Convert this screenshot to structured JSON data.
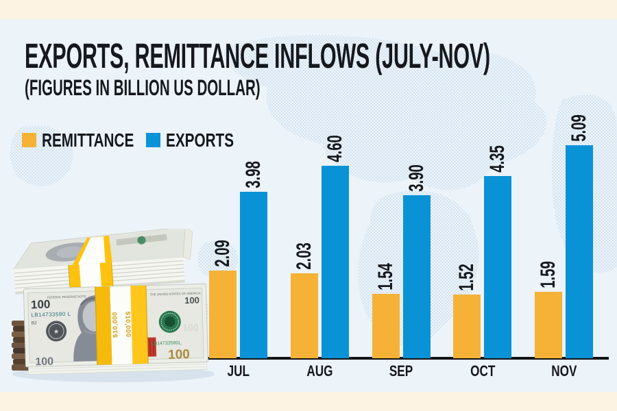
{
  "page": {
    "background_color": "#ecf3f9",
    "border_color": "#fdf3e2",
    "dot_pattern_color": "#c0d7ea",
    "ink_color": "#15181d"
  },
  "header": {
    "title": "EXPORTS, REMITTANCE INFLOWS (JULY-NOV)",
    "subtitle": "(FIGURES IN BILLION US DOLLAR)"
  },
  "legend": [
    {
      "label": "REMITTANCE",
      "color": "#f5b237"
    },
    {
      "label": "EXPORTS",
      "color": "#0a92d6"
    }
  ],
  "chart_data": {
    "type": "bar",
    "title": "EXPORTS, REMITTANCE INFLOWS (JULY-NOV)",
    "subtitle": "(FIGURES IN BILLION US DOLLAR)",
    "unit": "billion US dollar",
    "categories": [
      "JUL",
      "AUG",
      "SEP",
      "OCT",
      "NOV"
    ],
    "series": [
      {
        "name": "REMITTANCE",
        "color": "#f5b237",
        "values": [
          2.09,
          2.03,
          1.54,
          1.52,
          1.59
        ]
      },
      {
        "name": "EXPORTS",
        "color": "#0a92d6",
        "values": [
          3.98,
          4.6,
          3.9,
          4.35,
          5.09
        ]
      }
    ],
    "ylim": [
      0,
      5.5
    ],
    "grid": false,
    "legend_position": "top-left",
    "value_labels": "rotated-90-above-bars",
    "value_label_format": "0.00"
  },
  "money_illustration": {
    "denomination": "100",
    "band_amount": "$10,000",
    "serial_left": "LB14733580 L",
    "serial_right": "LB14733580L",
    "plate": "B2",
    "note_header": "FEDERAL RESERVE NOTE",
    "note_title": "THE UNITED STATES OF AMERICA"
  }
}
